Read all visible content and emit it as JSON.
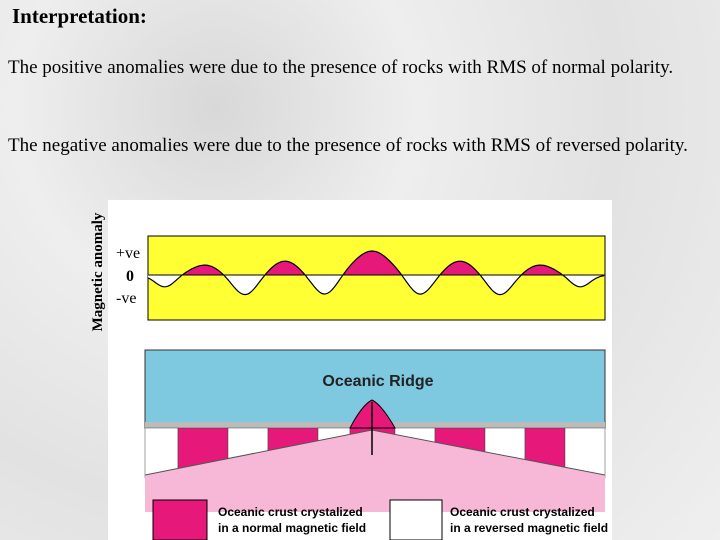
{
  "header": {
    "title": "Interpretation:"
  },
  "paragraphs": [
    "The positive anomalies were due to the presence of rocks with RMS of normal polarity.",
    "The negative anomalies were due to the presence of rocks with RMS of reversed polarity."
  ],
  "figure": {
    "axis_label": "Magnetic anomaly",
    "axis_marks": [
      "+ve",
      "0",
      "-ve"
    ],
    "ridge_label": "Oceanic Ridge",
    "legend": [
      {
        "line1": "Oceanic crust crystalized",
        "line2": "in a normal magnetic field"
      },
      {
        "line1": "Oceanic crust crystalized",
        "line2": "in a reversed magnetic field"
      }
    ]
  }
}
